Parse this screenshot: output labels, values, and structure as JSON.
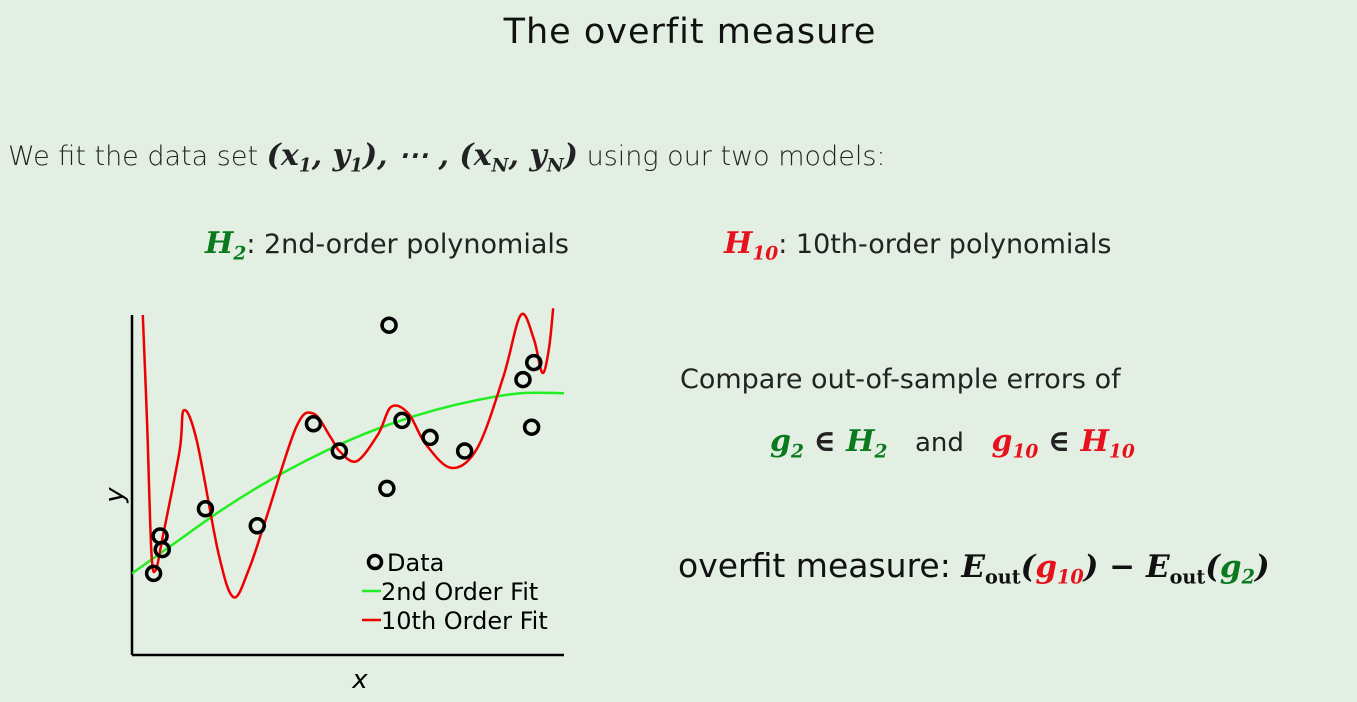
{
  "title": "The overfit measure",
  "intro": {
    "text": "We fit the data set",
    "math": "(x₁, y₁), ⋯ , (x_N, y_N)",
    "suffix": "using our two models:"
  },
  "models": {
    "h2": {
      "symbol": "H",
      "sub": "2",
      "desc": ": 2nd-order polynomials"
    },
    "h10": {
      "symbol": "H",
      "sub": "10",
      "desc": ": 10th-order polynomials"
    }
  },
  "compare": {
    "text": "Compare out-of-sample errors of",
    "and": "and"
  },
  "overfit": {
    "label": "overfit measure",
    "colon": ":"
  },
  "colors": {
    "background": "#e2efe2",
    "green_text": "#0b7a1f",
    "red_text": "#e8101c",
    "fit2": "#22ee22",
    "fit10": "#ee0000"
  },
  "chart_data": {
    "type": "scatter",
    "xlabel": "x",
    "ylabel": "y",
    "xlim": [
      0,
      1
    ],
    "ylim": [
      0,
      1
    ],
    "legend_position": "bottom-right",
    "legend": [
      "Data",
      "2nd Order Fit",
      "10th Order Fit"
    ],
    "series": [
      {
        "name": "Data",
        "kind": "points",
        "points": [
          [
            0.05,
            0.24
          ],
          [
            0.07,
            0.31
          ],
          [
            0.065,
            0.35
          ],
          [
            0.17,
            0.43
          ],
          [
            0.29,
            0.38
          ],
          [
            0.42,
            0.68
          ],
          [
            0.48,
            0.6
          ],
          [
            0.595,
            0.97
          ],
          [
            0.59,
            0.49
          ],
          [
            0.625,
            0.69
          ],
          [
            0.69,
            0.64
          ],
          [
            0.77,
            0.6
          ],
          [
            0.905,
            0.81
          ],
          [
            0.93,
            0.86
          ],
          [
            0.925,
            0.67
          ]
        ]
      },
      {
        "name": "2nd Order Fit",
        "kind": "line",
        "points": [
          [
            0.0,
            0.24
          ],
          [
            0.1,
            0.33
          ],
          [
            0.2,
            0.42
          ],
          [
            0.3,
            0.5
          ],
          [
            0.4,
            0.57
          ],
          [
            0.5,
            0.63
          ],
          [
            0.6,
            0.68
          ],
          [
            0.7,
            0.72
          ],
          [
            0.8,
            0.75
          ],
          [
            0.9,
            0.77
          ],
          [
            1.0,
            0.77
          ]
        ]
      },
      {
        "name": "10th Order Fit",
        "kind": "line",
        "points": [
          [
            0.025,
            1.0
          ],
          [
            0.035,
            0.68
          ],
          [
            0.045,
            0.3
          ],
          [
            0.055,
            0.25
          ],
          [
            0.07,
            0.34
          ],
          [
            0.11,
            0.6
          ],
          [
            0.12,
            0.72
          ],
          [
            0.15,
            0.63
          ],
          [
            0.2,
            0.3
          ],
          [
            0.235,
            0.17
          ],
          [
            0.27,
            0.25
          ],
          [
            0.31,
            0.4
          ],
          [
            0.38,
            0.67
          ],
          [
            0.42,
            0.71
          ],
          [
            0.46,
            0.64
          ],
          [
            0.48,
            0.6
          ],
          [
            0.52,
            0.57
          ],
          [
            0.57,
            0.65
          ],
          [
            0.6,
            0.73
          ],
          [
            0.64,
            0.71
          ],
          [
            0.68,
            0.62
          ],
          [
            0.74,
            0.55
          ],
          [
            0.8,
            0.61
          ],
          [
            0.86,
            0.82
          ],
          [
            0.9,
            1.0
          ],
          [
            0.93,
            0.93
          ],
          [
            0.95,
            0.83
          ],
          [
            0.965,
            0.9
          ],
          [
            0.975,
            1.02
          ]
        ]
      }
    ]
  }
}
